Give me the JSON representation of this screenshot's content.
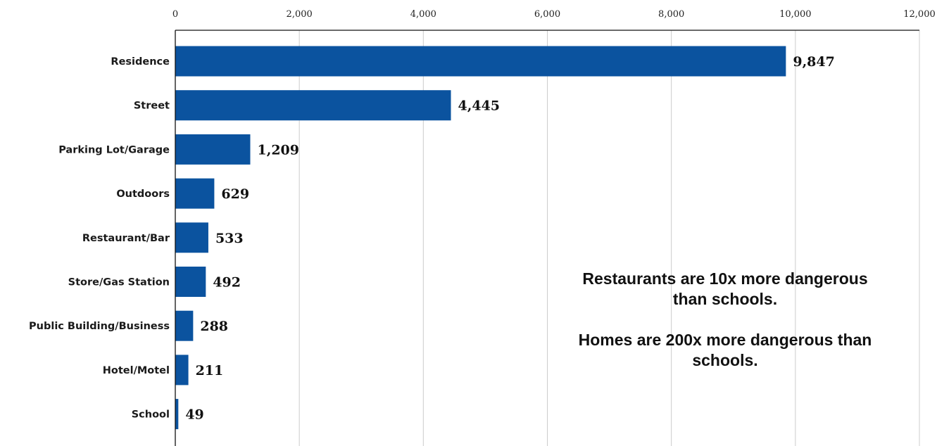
{
  "chart_data": {
    "type": "bar",
    "orientation": "horizontal",
    "categories": [
      "Residence",
      "Street",
      "Parking Lot/Garage",
      "Outdoors",
      "Restaurant/Bar",
      "Store/Gas Station",
      "Public Building/Business",
      "Hotel/Motel",
      "School"
    ],
    "values": [
      9847,
      4445,
      1209,
      629,
      533,
      492,
      288,
      211,
      49
    ],
    "value_labels": [
      "9,847",
      "4,445",
      "1,209",
      "629",
      "533",
      "492",
      "288",
      "211",
      "49"
    ],
    "xlim": [
      0,
      12000
    ],
    "x_ticks": [
      0,
      2000,
      4000,
      6000,
      8000,
      10000,
      12000
    ],
    "x_tick_labels": [
      "0",
      "2,000",
      "4,000",
      "6,000",
      "8,000",
      "10,000",
      "12,000"
    ],
    "x_axis_position": "top",
    "grid": true,
    "legend": "none",
    "bar_color": "#0b539f",
    "grid_color": "#cccccc",
    "title": "",
    "xlabel": "",
    "ylabel": ""
  },
  "annotation": {
    "paragraph_1": "Restaurants are 10x more dangerous than schools.",
    "paragraph_2": "Homes are 200x more dangerous than schools."
  }
}
